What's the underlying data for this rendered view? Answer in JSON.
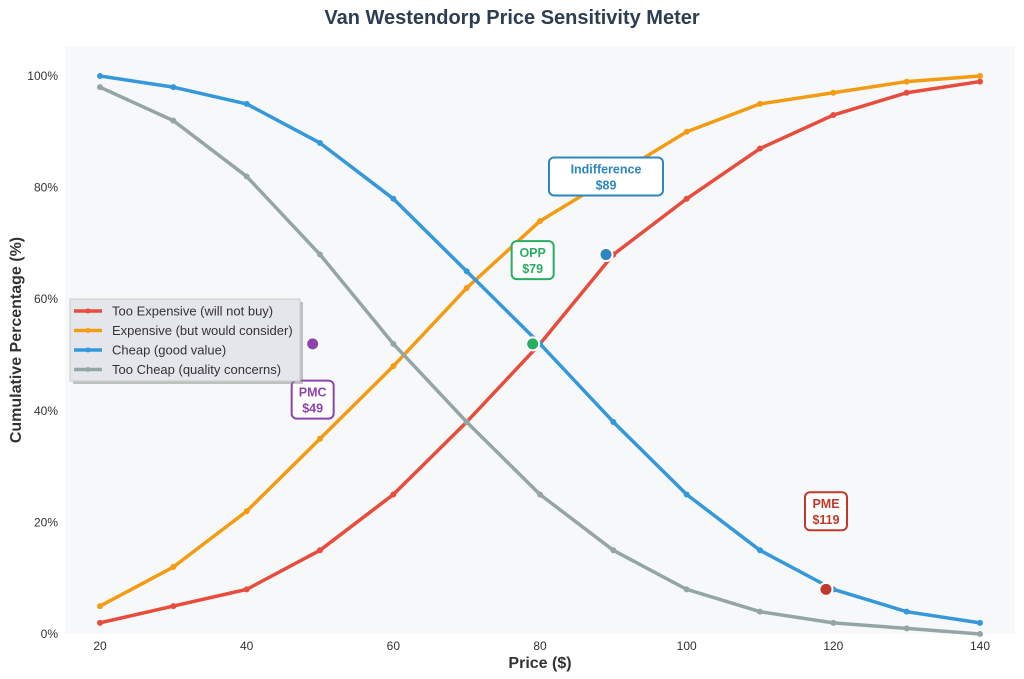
{
  "chart_data": {
    "type": "line",
    "title": "Van Westendorp Price Sensitivity Meter",
    "xlabel": "Price ($)",
    "ylabel": "Cumulative Percentage (%)",
    "xlim": [
      15,
      145
    ],
    "ylim": [
      0,
      105
    ],
    "x": [
      20,
      30,
      40,
      50,
      60,
      70,
      80,
      90,
      100,
      110,
      120,
      130,
      140
    ],
    "xticks": [
      20,
      40,
      60,
      80,
      100,
      120,
      140
    ],
    "yticks": [
      0,
      20,
      40,
      60,
      80,
      100
    ],
    "ytick_suffix": "%",
    "grid": false,
    "legend_position": "center-left",
    "series": [
      {
        "name": "Too Expensive (will not buy)",
        "color": "#e74c3c",
        "values": [
          2,
          5,
          8,
          15,
          25,
          38,
          52,
          68,
          78,
          87,
          93,
          97,
          99
        ]
      },
      {
        "name": "Expensive (but would consider)",
        "color": "#f39c12",
        "values": [
          5,
          12,
          22,
          35,
          48,
          62,
          74,
          82,
          90,
          95,
          97,
          99,
          100
        ]
      },
      {
        "name": "Cheap (good value)",
        "color": "#3498db",
        "values": [
          100,
          98,
          95,
          88,
          78,
          65,
          52,
          38,
          25,
          15,
          8,
          4,
          2
        ]
      },
      {
        "name": "Too Cheap (quality concerns)",
        "color": "#95a5a6",
        "values": [
          98,
          92,
          82,
          68,
          52,
          38,
          25,
          15,
          8,
          4,
          2,
          1,
          0
        ]
      }
    ],
    "annotations": [
      {
        "label": "PMC",
        "price": "$49",
        "x": 49,
        "y": 52,
        "color": "#8e44ad",
        "lx": 49,
        "ly": 42
      },
      {
        "label": "OPP",
        "price": "$79",
        "x": 79,
        "y": 52,
        "color": "#27ae60",
        "lx": 79,
        "ly": 67
      },
      {
        "label": "Indifference",
        "price": "$89",
        "x": 89,
        "y": 68,
        "color": "#2e86c1",
        "lx": 89,
        "ly": 82
      },
      {
        "label": "PME",
        "price": "$119",
        "x": 119,
        "y": 8,
        "color": "#c0392b",
        "lx": 119,
        "ly": 22
      }
    ]
  }
}
